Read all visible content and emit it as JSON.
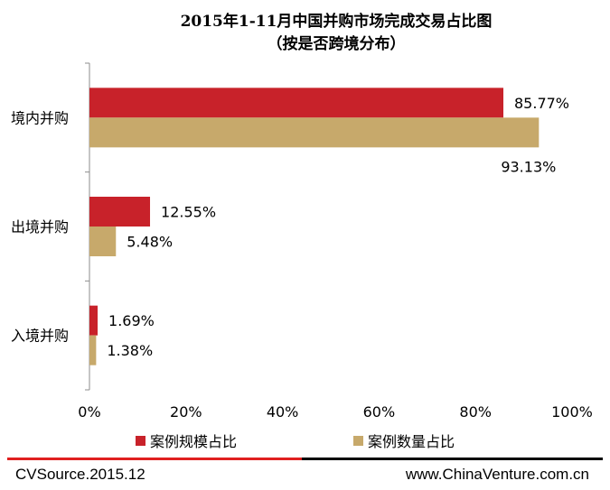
{
  "chart_data": {
    "type": "bar",
    "orientation": "horizontal",
    "title": "2015年1-11月中国并购市场完成交易占比图",
    "subtitle": "（按是否跨境分布）",
    "categories": [
      "境内并购",
      "出境并购",
      "入境并购"
    ],
    "series": [
      {
        "name": "案例规模占比",
        "color": "#c8222a",
        "values": [
          85.77,
          12.55,
          1.69
        ],
        "labels": [
          "85.77%",
          "12.55%",
          "1.69%"
        ]
      },
      {
        "name": "案例数量占比",
        "color": "#c7a96b",
        "values": [
          93.13,
          5.48,
          1.38
        ],
        "labels": [
          "93.13%",
          "5.48%",
          "1.38%"
        ]
      }
    ],
    "xlim": [
      0,
      100
    ],
    "xticks": [
      "0%",
      "20%",
      "40%",
      "60%",
      "80%",
      "100%"
    ],
    "grid": false,
    "legend_position": "bottom"
  },
  "footer": {
    "source": "CVSource.2015.12",
    "website": "www.ChinaVenture.com.cn",
    "rule_color_left": "#e02020",
    "rule_color_right": "#000000"
  }
}
